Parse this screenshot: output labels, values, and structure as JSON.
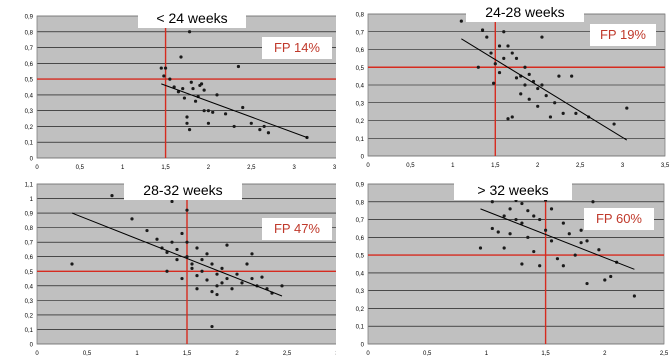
{
  "chart_data": [
    {
      "type": "scatter",
      "title": "< 24 weeks",
      "annotation": "FP 14%",
      "xlim": [
        0,
        3.5
      ],
      "ylim": [
        0,
        0.9
      ],
      "xticks": [
        "0",
        "0,5",
        "1",
        "1,5",
        "2",
        "2,5",
        "3",
        "3,5"
      ],
      "yticks": [
        "0",
        "0,1",
        "0,2",
        "0,3",
        "0,4",
        "0,5",
        "0,6",
        "0,7",
        "0,8",
        "0,9"
      ],
      "vline_x": 1.5,
      "hline_y": 0.5,
      "trend": [
        [
          1.45,
          0.47
        ],
        [
          3.15,
          0.13
        ]
      ],
      "points": [
        [
          1.45,
          0.57
        ],
        [
          1.48,
          0.52
        ],
        [
          1.5,
          0.57
        ],
        [
          1.55,
          0.5
        ],
        [
          1.6,
          0.45
        ],
        [
          1.65,
          0.42
        ],
        [
          1.68,
          0.64
        ],
        [
          1.7,
          0.44
        ],
        [
          1.72,
          0.38
        ],
        [
          1.75,
          0.26
        ],
        [
          1.75,
          0.22
        ],
        [
          1.78,
          0.18
        ],
        [
          1.78,
          0.8
        ],
        [
          1.8,
          0.48
        ],
        [
          1.82,
          0.44
        ],
        [
          1.85,
          0.36
        ],
        [
          1.88,
          0.39
        ],
        [
          1.9,
          0.46
        ],
        [
          1.92,
          0.47
        ],
        [
          1.95,
          0.43
        ],
        [
          1.95,
          0.3
        ],
        [
          2.0,
          0.22
        ],
        [
          2.0,
          0.3
        ],
        [
          2.05,
          0.29
        ],
        [
          2.1,
          0.4
        ],
        [
          2.2,
          0.28
        ],
        [
          2.3,
          0.2
        ],
        [
          2.35,
          0.58
        ],
        [
          2.4,
          0.32
        ],
        [
          2.5,
          0.22
        ],
        [
          2.6,
          0.18
        ],
        [
          2.65,
          0.2
        ],
        [
          2.7,
          0.16
        ],
        [
          3.15,
          0.13
        ]
      ]
    },
    {
      "type": "scatter",
      "title": "24-28 weeks",
      "annotation": "FP 19%",
      "xlim": [
        0,
        3.5
      ],
      "ylim": [
        0,
        0.8
      ],
      "xticks": [
        "0",
        "0,5",
        "1",
        "1,5",
        "2",
        "2,5",
        "3",
        "3,5"
      ],
      "yticks": [
        "0",
        "0,1",
        "0,2",
        "0,3",
        "0,4",
        "0,5",
        "0,6",
        "0,7",
        "0,8"
      ],
      "vline_x": 1.5,
      "hline_y": 0.5,
      "trend": [
        [
          1.1,
          0.66
        ],
        [
          3.05,
          0.09
        ]
      ],
      "points": [
        [
          1.1,
          0.76
        ],
        [
          1.3,
          0.5
        ],
        [
          1.35,
          0.71
        ],
        [
          1.4,
          0.67
        ],
        [
          1.45,
          0.58
        ],
        [
          1.5,
          0.52
        ],
        [
          1.55,
          0.62
        ],
        [
          1.55,
          0.47
        ],
        [
          1.6,
          0.7
        ],
        [
          1.6,
          0.55
        ],
        [
          1.65,
          0.62
        ],
        [
          1.7,
          0.58
        ],
        [
          1.7,
          0.22
        ],
        [
          1.75,
          0.55
        ],
        [
          1.8,
          0.45
        ],
        [
          1.8,
          0.35
        ],
        [
          1.85,
          0.5
        ],
        [
          1.85,
          0.4
        ],
        [
          1.9,
          0.46
        ],
        [
          1.9,
          0.32
        ],
        [
          1.95,
          0.42
        ],
        [
          2.0,
          0.28
        ],
        [
          2.0,
          0.38
        ],
        [
          2.05,
          0.67
        ],
        [
          2.05,
          0.4
        ],
        [
          2.1,
          0.34
        ],
        [
          2.15,
          0.22
        ],
        [
          2.2,
          0.3
        ],
        [
          2.25,
          0.45
        ],
        [
          2.3,
          0.24
        ],
        [
          2.4,
          0.45
        ],
        [
          2.45,
          0.24
        ],
        [
          2.6,
          0.22
        ],
        [
          2.9,
          0.18
        ],
        [
          3.05,
          0.27
        ],
        [
          1.48,
          0.41
        ],
        [
          1.65,
          0.21
        ],
        [
          1.75,
          0.44
        ]
      ]
    },
    {
      "type": "scatter",
      "title": "28-32 weeks",
      "annotation": "FP 47%",
      "xlim": [
        0,
        3
      ],
      "ylim": [
        0,
        1.1
      ],
      "xticks": [
        "0",
        "0,5",
        "1",
        "1,5",
        "2",
        "2,5",
        "3"
      ],
      "yticks": [
        "0",
        "0,1",
        "0,2",
        "0,3",
        "0,4",
        "0,5",
        "0,6",
        "0,7",
        "0,8",
        "0,9",
        "1",
        "1,1"
      ],
      "vline_x": 1.5,
      "hline_y": 0.5,
      "trend": [
        [
          0.35,
          0.9
        ],
        [
          2.45,
          0.33
        ]
      ],
      "points": [
        [
          0.35,
          0.55
        ],
        [
          0.75,
          1.02
        ],
        [
          0.95,
          0.86
        ],
        [
          1.1,
          0.78
        ],
        [
          1.2,
          0.72
        ],
        [
          1.25,
          0.66
        ],
        [
          1.3,
          0.63
        ],
        [
          1.3,
          0.5
        ],
        [
          1.35,
          0.7
        ],
        [
          1.35,
          0.98
        ],
        [
          1.4,
          0.58
        ],
        [
          1.4,
          0.65
        ],
        [
          1.45,
          0.76
        ],
        [
          1.45,
          0.45
        ],
        [
          1.5,
          0.7
        ],
        [
          1.5,
          0.6
        ],
        [
          1.5,
          0.92
        ],
        [
          1.55,
          0.55
        ],
        [
          1.55,
          0.52
        ],
        [
          1.6,
          0.66
        ],
        [
          1.6,
          0.47
        ],
        [
          1.6,
          0.38
        ],
        [
          1.65,
          0.58
        ],
        [
          1.65,
          0.5
        ],
        [
          1.7,
          0.62
        ],
        [
          1.7,
          0.44
        ],
        [
          1.75,
          0.55
        ],
        [
          1.75,
          0.36
        ],
        [
          1.75,
          0.12
        ],
        [
          1.8,
          0.48
        ],
        [
          1.8,
          0.4
        ],
        [
          1.8,
          0.34
        ],
        [
          1.85,
          0.52
        ],
        [
          1.85,
          0.42
        ],
        [
          1.9,
          0.68
        ],
        [
          1.9,
          0.45
        ],
        [
          1.95,
          0.38
        ],
        [
          2.0,
          0.48
        ],
        [
          2.05,
          0.42
        ],
        [
          2.1,
          0.55
        ],
        [
          2.15,
          0.45
        ],
        [
          2.15,
          0.62
        ],
        [
          2.2,
          0.4
        ],
        [
          2.25,
          0.46
        ],
        [
          2.3,
          0.38
        ],
        [
          2.35,
          0.35
        ],
        [
          2.45,
          0.4
        ]
      ]
    },
    {
      "type": "scatter",
      "title": "> 32 weeks",
      "annotation": "FP 60%",
      "xlim": [
        0,
        2.5
      ],
      "ylim": [
        0,
        0.9
      ],
      "xticks": [
        "0",
        "0,5",
        "1",
        "1,5",
        "2",
        "2,5"
      ],
      "yticks": [
        "0",
        "0,1",
        "0,2",
        "0,3",
        "0,4",
        "0,5",
        "0,6",
        "0,7",
        "0,8",
        "0,9"
      ],
      "vline_x": 1.5,
      "hline_y": 0.5,
      "trend": [
        [
          0.95,
          0.76
        ],
        [
          2.25,
          0.42
        ]
      ],
      "points": [
        [
          0.95,
          0.54
        ],
        [
          1.05,
          0.8
        ],
        [
          1.05,
          0.65
        ],
        [
          1.1,
          0.63
        ],
        [
          1.15,
          0.72
        ],
        [
          1.15,
          0.54
        ],
        [
          1.2,
          0.76
        ],
        [
          1.2,
          0.62
        ],
        [
          1.25,
          0.81
        ],
        [
          1.25,
          0.7
        ],
        [
          1.3,
          0.79
        ],
        [
          1.3,
          0.68
        ],
        [
          1.3,
          0.45
        ],
        [
          1.35,
          0.6
        ],
        [
          1.35,
          0.75
        ],
        [
          1.4,
          0.72
        ],
        [
          1.4,
          0.52
        ],
        [
          1.45,
          0.7
        ],
        [
          1.45,
          0.44
        ],
        [
          1.5,
          0.81
        ],
        [
          1.5,
          0.64
        ],
        [
          1.55,
          0.76
        ],
        [
          1.55,
          0.58
        ],
        [
          1.6,
          0.48
        ],
        [
          1.65,
          0.44
        ],
        [
          1.65,
          0.68
        ],
        [
          1.7,
          0.62
        ],
        [
          1.75,
          0.5
        ],
        [
          1.8,
          0.64
        ],
        [
          1.8,
          0.57
        ],
        [
          1.85,
          0.58
        ],
        [
          1.85,
          0.34
        ],
        [
          1.9,
          0.8
        ],
        [
          1.95,
          0.53
        ],
        [
          2.0,
          0.36
        ],
        [
          2.05,
          0.38
        ],
        [
          2.1,
          0.46
        ],
        [
          2.25,
          0.27
        ]
      ]
    }
  ]
}
